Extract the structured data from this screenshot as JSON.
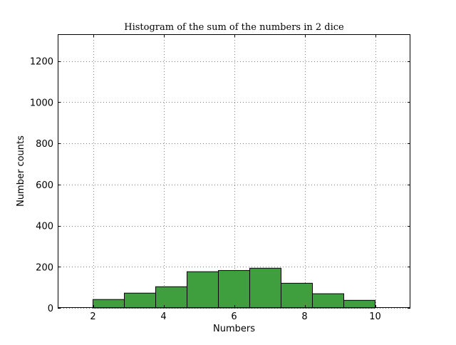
{
  "chart_data": {
    "type": "bar",
    "title": "Histogram of the sum of the numbers in 2 dice",
    "xlabel": "Numbers",
    "ylabel": "Number counts",
    "xlim": [
      1,
      11
    ],
    "ylim": [
      0,
      1330
    ],
    "bins": [
      {
        "x0": 2.0,
        "x1": 2.889,
        "value": 41
      },
      {
        "x0": 2.889,
        "x1": 3.778,
        "value": 72
      },
      {
        "x0": 3.778,
        "x1": 4.667,
        "value": 103
      },
      {
        "x0": 4.667,
        "x1": 5.556,
        "value": 176
      },
      {
        "x0": 5.556,
        "x1": 6.444,
        "value": 182
      },
      {
        "x0": 6.444,
        "x1": 7.333,
        "value": 193
      },
      {
        "x0": 7.333,
        "x1": 8.222,
        "value": 120
      },
      {
        "x0": 8.222,
        "x1": 9.111,
        "value": 69
      },
      {
        "x0": 9.111,
        "x1": 10.0,
        "value": 37
      }
    ],
    "x_ticks": [
      {
        "value": 2,
        "label": "2"
      },
      {
        "value": 4,
        "label": "4"
      },
      {
        "value": 6,
        "label": "6"
      },
      {
        "value": 8,
        "label": "8"
      },
      {
        "value": 10,
        "label": "10"
      }
    ],
    "y_ticks": [
      {
        "value": 0,
        "label": "0"
      },
      {
        "value": 200,
        "label": "200"
      },
      {
        "value": 400,
        "label": "400"
      },
      {
        "value": 600,
        "label": "600"
      },
      {
        "value": 800,
        "label": "800"
      },
      {
        "value": 1000,
        "label": "1000"
      },
      {
        "value": 1200,
        "label": "1200"
      }
    ],
    "grid": true,
    "bar_color": "#3f9f3f",
    "edge_color": "#000000"
  }
}
